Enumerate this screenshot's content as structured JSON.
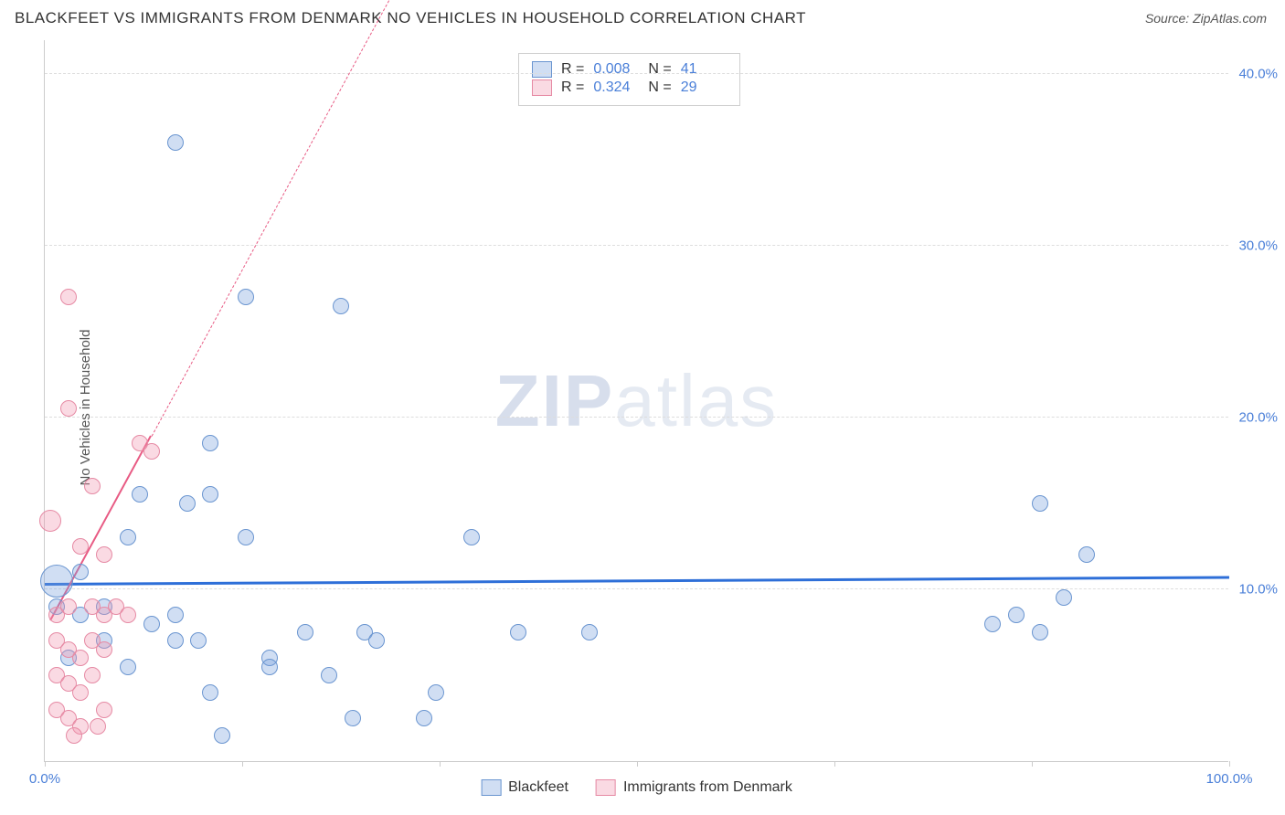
{
  "title": "BLACKFEET VS IMMIGRANTS FROM DENMARK NO VEHICLES IN HOUSEHOLD CORRELATION CHART",
  "source_prefix": "Source: ",
  "source_name": "ZipAtlas.com",
  "watermark_a": "ZIP",
  "watermark_b": "atlas",
  "chart": {
    "type": "scatter",
    "ylabel": "No Vehicles in Household",
    "background_color": "#ffffff",
    "grid_color": "#dddddd",
    "axis_color": "#cccccc",
    "xlim": [
      0,
      100
    ],
    "ylim": [
      0,
      42
    ],
    "xticks": [
      0,
      16.7,
      33.3,
      50,
      66.7,
      83.3,
      100
    ],
    "xtick_labels": {
      "0": "0.0%",
      "100": "100.0%"
    },
    "yticks": [
      10,
      20,
      30,
      40
    ],
    "ytick_labels": {
      "10": "10.0%",
      "20": "20.0%",
      "30": "30.0%",
      "40": "40.0%"
    },
    "tick_label_color": "#4a7fd8",
    "series": [
      {
        "name": "Blackfeet",
        "fill_color": "rgba(120,160,220,0.35)",
        "stroke_color": "#6a95d0",
        "point_radius": 9,
        "R_label": "R =",
        "R_value": "0.008",
        "N_label": "N =",
        "N_value": "41",
        "trend": {
          "color": "#2e6fd8",
          "width": 3,
          "solid_xrange": [
            0,
            100
          ],
          "y_at_x0": 10.2,
          "y_at_x100": 10.6
        },
        "points": [
          {
            "x": 1,
            "y": 10.5,
            "r": 18
          },
          {
            "x": 11,
            "y": 36
          },
          {
            "x": 17,
            "y": 27
          },
          {
            "x": 25,
            "y": 26.5
          },
          {
            "x": 14,
            "y": 18.5
          },
          {
            "x": 8,
            "y": 15.5
          },
          {
            "x": 12,
            "y": 15
          },
          {
            "x": 14,
            "y": 15.5
          },
          {
            "x": 7,
            "y": 13
          },
          {
            "x": 17,
            "y": 13
          },
          {
            "x": 36,
            "y": 13
          },
          {
            "x": 1,
            "y": 9
          },
          {
            "x": 3,
            "y": 8.5
          },
          {
            "x": 5,
            "y": 9
          },
          {
            "x": 9,
            "y": 8
          },
          {
            "x": 11,
            "y": 8.5
          },
          {
            "x": 7,
            "y": 5.5
          },
          {
            "x": 11,
            "y": 7
          },
          {
            "x": 13,
            "y": 7
          },
          {
            "x": 19,
            "y": 6
          },
          {
            "x": 22,
            "y": 7.5
          },
          {
            "x": 27,
            "y": 7.5
          },
          {
            "x": 28,
            "y": 7
          },
          {
            "x": 14,
            "y": 4
          },
          {
            "x": 19,
            "y": 5.5
          },
          {
            "x": 24,
            "y": 5
          },
          {
            "x": 26,
            "y": 2.5
          },
          {
            "x": 32,
            "y": 2.5
          },
          {
            "x": 15,
            "y": 1.5
          },
          {
            "x": 33,
            "y": 4
          },
          {
            "x": 40,
            "y": 7.5
          },
          {
            "x": 46,
            "y": 7.5
          },
          {
            "x": 84,
            "y": 15
          },
          {
            "x": 88,
            "y": 12
          },
          {
            "x": 80,
            "y": 8
          },
          {
            "x": 82,
            "y": 8.5
          },
          {
            "x": 84,
            "y": 7.5
          },
          {
            "x": 86,
            "y": 9.5
          },
          {
            "x": 3,
            "y": 11
          },
          {
            "x": 5,
            "y": 7
          },
          {
            "x": 2,
            "y": 6
          }
        ]
      },
      {
        "name": "Immigrants from Denmark",
        "fill_color": "rgba(240,150,175,0.35)",
        "stroke_color": "#e68aa4",
        "point_radius": 9,
        "R_label": "R =",
        "R_value": "0.324",
        "N_label": "N =",
        "N_value": "29",
        "trend": {
          "color": "#e85b84",
          "width": 2,
          "solid_xrange": [
            0.5,
            9
          ],
          "dashed_xrange": [
            9,
            32
          ],
          "y_at_x0": 7.5,
          "y_at_x32": 48
        },
        "points": [
          {
            "x": 2,
            "y": 27
          },
          {
            "x": 2,
            "y": 20.5
          },
          {
            "x": 8,
            "y": 18.5
          },
          {
            "x": 9,
            "y": 18
          },
          {
            "x": 4,
            "y": 16
          },
          {
            "x": 0.5,
            "y": 14,
            "r": 12
          },
          {
            "x": 3,
            "y": 12.5
          },
          {
            "x": 5,
            "y": 12
          },
          {
            "x": 1,
            "y": 8.5
          },
          {
            "x": 2,
            "y": 9
          },
          {
            "x": 4,
            "y": 9
          },
          {
            "x": 5,
            "y": 8.5
          },
          {
            "x": 6,
            "y": 9
          },
          {
            "x": 7,
            "y": 8.5
          },
          {
            "x": 1,
            "y": 7
          },
          {
            "x": 2,
            "y": 6.5
          },
          {
            "x": 3,
            "y": 6
          },
          {
            "x": 4,
            "y": 7
          },
          {
            "x": 5,
            "y": 6.5
          },
          {
            "x": 1,
            "y": 5
          },
          {
            "x": 2,
            "y": 4.5
          },
          {
            "x": 3,
            "y": 4
          },
          {
            "x": 4,
            "y": 5
          },
          {
            "x": 1,
            "y": 3
          },
          {
            "x": 2,
            "y": 2.5
          },
          {
            "x": 3,
            "y": 2
          },
          {
            "x": 5,
            "y": 3
          },
          {
            "x": 2.5,
            "y": 1.5
          },
          {
            "x": 4.5,
            "y": 2
          }
        ]
      }
    ],
    "legend_bottom": [
      {
        "swatch_fill": "rgba(120,160,220,0.35)",
        "swatch_stroke": "#6a95d0",
        "label": "Blackfeet"
      },
      {
        "swatch_fill": "rgba(240,150,175,0.35)",
        "swatch_stroke": "#e68aa4",
        "label": "Immigrants from Denmark"
      }
    ]
  }
}
